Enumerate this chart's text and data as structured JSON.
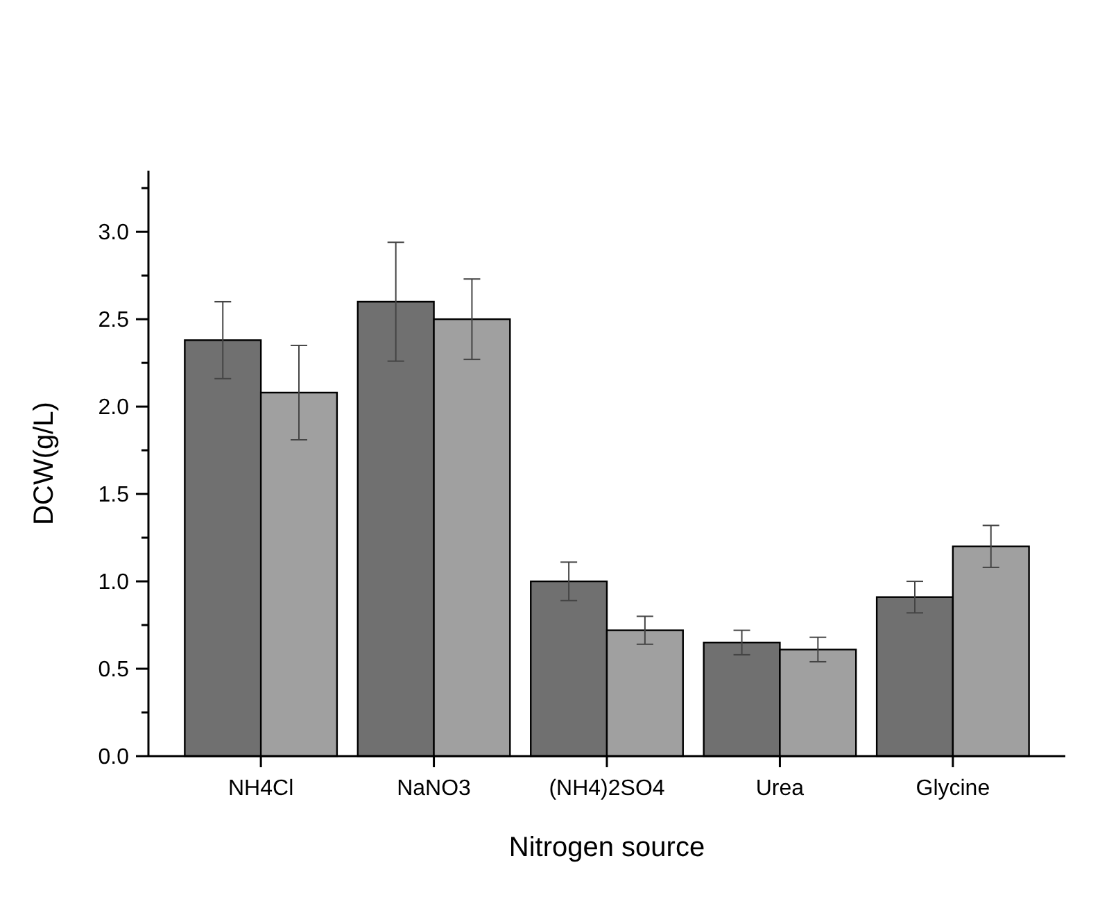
{
  "chart_data": {
    "type": "bar",
    "xlabel": "Nitrogen source",
    "ylabel": "DCW(g/L)",
    "categories": [
      "NH4Cl",
      "NaNO3",
      "(NH4)2SO4",
      "Urea",
      "Glycine"
    ],
    "series": [
      {
        "color": "#707070",
        "values": [
          2.38,
          2.6,
          1.0,
          0.65,
          0.91
        ],
        "errors": [
          0.22,
          0.34,
          0.11,
          0.07,
          0.09
        ]
      },
      {
        "color": "#a0a0a0",
        "values": [
          2.08,
          2.5,
          0.72,
          0.61,
          1.2
        ],
        "errors": [
          0.27,
          0.23,
          0.08,
          0.07,
          0.12
        ]
      }
    ],
    "ylim": [
      0,
      3.35
    ],
    "yticks": [
      {
        "value": 0,
        "label": "0.0"
      },
      {
        "value": 0.25,
        "label": null
      },
      {
        "value": 0.5,
        "label": "0.5"
      },
      {
        "value": 0.75,
        "label": null
      },
      {
        "value": 1,
        "label": "1.0"
      },
      {
        "value": 1.25,
        "label": null
      },
      {
        "value": 1.5,
        "label": "1.5"
      },
      {
        "value": 1.75,
        "label": null
      },
      {
        "value": 2,
        "label": "2.0"
      },
      {
        "value": 2.25,
        "label": null
      },
      {
        "value": 2.5,
        "label": "2.5"
      },
      {
        "value": 2.75,
        "label": null
      },
      {
        "value": 3,
        "label": "3.0"
      },
      {
        "value": 3.25,
        "label": null
      }
    ],
    "grid": false
  }
}
